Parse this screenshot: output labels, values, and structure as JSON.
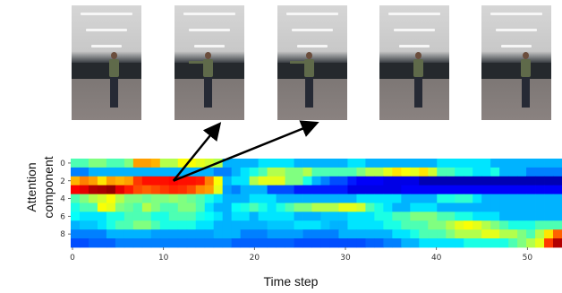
{
  "frames": [
    {
      "name": "frame-1"
    },
    {
      "name": "frame-2"
    },
    {
      "name": "frame-3"
    },
    {
      "name": "frame-4"
    },
    {
      "name": "frame-5"
    }
  ],
  "chart_data": {
    "type": "heatmap",
    "title": "",
    "xlabel": "Time step",
    "ylabel_line1": "Attention",
    "ylabel_line2": "component",
    "x_ticks": [
      0,
      10,
      20,
      30,
      40,
      50
    ],
    "y_ticks": [
      0,
      2,
      4,
      6,
      8
    ],
    "xlim": [
      0,
      54
    ],
    "ylim": [
      0,
      9
    ],
    "colormap": "jet",
    "colors": [
      "#00007f",
      "#0000ff",
      "#007fff",
      "#00ffff",
      "#7fff7f",
      "#ffff00",
      "#ff7f00",
      "#ff0000",
      "#7f0000"
    ],
    "arrows_from_cell": {
      "x": 11,
      "y": 2
    },
    "arrows_to_frames": [
      "frame-2",
      "frame-3"
    ],
    "rows": [
      [
        0.45,
        0.45,
        0.5,
        0.5,
        0.45,
        0.45,
        0.5,
        0.72,
        0.72,
        0.7,
        0.55,
        0.55,
        0.62,
        0.62,
        0.6,
        0.58,
        0.55,
        0.3,
        0.3,
        0.3,
        0.3,
        0.35,
        0.35,
        0.35,
        0.35,
        0.3,
        0.3,
        0.3,
        0.3,
        0.3,
        0.3,
        0.35,
        0.35,
        0.3,
        0.3,
        0.3,
        0.3,
        0.3,
        0.3,
        0.3,
        0.3,
        0.35,
        0.35,
        0.35,
        0.35,
        0.35,
        0.35,
        0.3,
        0.3,
        0.3,
        0.3,
        0.3,
        0.3,
        0.3,
        0.3
      ],
      [
        0.25,
        0.25,
        0.3,
        0.3,
        0.3,
        0.3,
        0.3,
        0.3,
        0.3,
        0.3,
        0.3,
        0.3,
        0.3,
        0.3,
        0.3,
        0.3,
        0.25,
        0.25,
        0.3,
        0.35,
        0.4,
        0.45,
        0.55,
        0.55,
        0.5,
        0.5,
        0.55,
        0.45,
        0.45,
        0.45,
        0.45,
        0.45,
        0.5,
        0.55,
        0.55,
        0.6,
        0.65,
        0.62,
        0.6,
        0.65,
        0.58,
        0.45,
        0.45,
        0.4,
        0.4,
        0.35,
        0.35,
        0.4,
        0.3,
        0.3,
        0.3,
        0.25,
        0.25,
        0.25,
        0.25
      ],
      [
        0.7,
        0.75,
        0.72,
        0.65,
        0.72,
        0.7,
        0.72,
        0.82,
        0.86,
        0.86,
        0.86,
        0.87,
        0.86,
        0.86,
        0.85,
        0.75,
        0.62,
        0.3,
        0.35,
        0.35,
        0.55,
        0.6,
        0.6,
        0.6,
        0.5,
        0.5,
        0.4,
        0.3,
        0.25,
        0.2,
        0.2,
        0.15,
        0.12,
        0.12,
        0.12,
        0.1,
        0.1,
        0.1,
        0.1,
        0.05,
        0.05,
        0.05,
        0.05,
        0.05,
        0.05,
        0.05,
        0.05,
        0.05,
        0.05,
        0.05,
        0.05,
        0.05,
        0.05,
        0.05,
        0.05
      ],
      [
        0.88,
        0.9,
        0.95,
        0.96,
        0.98,
        0.9,
        0.85,
        0.8,
        0.78,
        0.8,
        0.82,
        0.84,
        0.83,
        0.8,
        0.74,
        0.72,
        0.6,
        0.28,
        0.25,
        0.3,
        0.3,
        0.3,
        0.2,
        0.2,
        0.2,
        0.15,
        0.15,
        0.15,
        0.15,
        0.15,
        0.15,
        0.1,
        0.1,
        0.1,
        0.1,
        0.1,
        0.1,
        0.12,
        0.12,
        0.12,
        0.12,
        0.12,
        0.12,
        0.12,
        0.12,
        0.12,
        0.12,
        0.12,
        0.12,
        0.12,
        0.12,
        0.12,
        0.12,
        0.12,
        0.12
      ],
      [
        0.45,
        0.5,
        0.55,
        0.58,
        0.62,
        0.55,
        0.5,
        0.5,
        0.48,
        0.5,
        0.5,
        0.52,
        0.5,
        0.48,
        0.45,
        0.4,
        0.35,
        0.3,
        0.3,
        0.3,
        0.35,
        0.35,
        0.35,
        0.3,
        0.3,
        0.3,
        0.3,
        0.3,
        0.3,
        0.3,
        0.3,
        0.3,
        0.35,
        0.35,
        0.35,
        0.35,
        0.35,
        0.3,
        0.3,
        0.3,
        0.3,
        0.4,
        0.4,
        0.42,
        0.42,
        0.35,
        0.3,
        0.3,
        0.3,
        0.3,
        0.3,
        0.3,
        0.3,
        0.3,
        0.3
      ],
      [
        0.4,
        0.45,
        0.45,
        0.62,
        0.6,
        0.5,
        0.48,
        0.45,
        0.55,
        0.5,
        0.45,
        0.45,
        0.5,
        0.5,
        0.45,
        0.35,
        0.3,
        0.3,
        0.38,
        0.4,
        0.45,
        0.4,
        0.35,
        0.4,
        0.45,
        0.5,
        0.5,
        0.55,
        0.55,
        0.55,
        0.6,
        0.6,
        0.58,
        0.45,
        0.4,
        0.35,
        0.3,
        0.3,
        0.35,
        0.35,
        0.35,
        0.3,
        0.3,
        0.3,
        0.3,
        0.3,
        0.3,
        0.3,
        0.3,
        0.3,
        0.3,
        0.3,
        0.3,
        0.3,
        0.3
      ],
      [
        0.38,
        0.35,
        0.35,
        0.35,
        0.4,
        0.4,
        0.45,
        0.45,
        0.45,
        0.4,
        0.4,
        0.45,
        0.45,
        0.45,
        0.4,
        0.38,
        0.35,
        0.3,
        0.35,
        0.35,
        0.3,
        0.35,
        0.35,
        0.35,
        0.35,
        0.3,
        0.3,
        0.3,
        0.32,
        0.32,
        0.32,
        0.35,
        0.35,
        0.35,
        0.4,
        0.4,
        0.45,
        0.45,
        0.5,
        0.5,
        0.5,
        0.45,
        0.45,
        0.4,
        0.4,
        0.35,
        0.35,
        0.35,
        0.3,
        0.3,
        0.3,
        0.3,
        0.3,
        0.3,
        0.3
      ],
      [
        0.3,
        0.32,
        0.32,
        0.35,
        0.4,
        0.45,
        0.45,
        0.5,
        0.5,
        0.45,
        0.4,
        0.4,
        0.4,
        0.4,
        0.35,
        0.35,
        0.3,
        0.3,
        0.3,
        0.3,
        0.3,
        0.3,
        0.32,
        0.32,
        0.32,
        0.35,
        0.35,
        0.35,
        0.32,
        0.3,
        0.3,
        0.35,
        0.35,
        0.35,
        0.35,
        0.4,
        0.4,
        0.45,
        0.45,
        0.45,
        0.5,
        0.5,
        0.55,
        0.6,
        0.62,
        0.6,
        0.55,
        0.5,
        0.45,
        0.4,
        0.4,
        0.4,
        0.45,
        0.45,
        0.45
      ],
      [
        0.25,
        0.25,
        0.25,
        0.25,
        0.3,
        0.3,
        0.3,
        0.3,
        0.3,
        0.28,
        0.28,
        0.28,
        0.28,
        0.28,
        0.28,
        0.28,
        0.3,
        0.3,
        0.3,
        0.25,
        0.25,
        0.25,
        0.28,
        0.28,
        0.28,
        0.28,
        0.25,
        0.25,
        0.25,
        0.25,
        0.3,
        0.3,
        0.3,
        0.3,
        0.3,
        0.3,
        0.35,
        0.35,
        0.4,
        0.45,
        0.45,
        0.45,
        0.5,
        0.55,
        0.55,
        0.55,
        0.6,
        0.6,
        0.55,
        0.55,
        0.5,
        0.45,
        0.55,
        0.65,
        0.78
      ],
      [
        0.2,
        0.2,
        0.22,
        0.22,
        0.22,
        0.25,
        0.25,
        0.25,
        0.25,
        0.25,
        0.25,
        0.25,
        0.25,
        0.25,
        0.25,
        0.25,
        0.25,
        0.25,
        0.22,
        0.22,
        0.22,
        0.22,
        0.22,
        0.22,
        0.22,
        0.2,
        0.2,
        0.2,
        0.2,
        0.2,
        0.2,
        0.2,
        0.2,
        0.22,
        0.22,
        0.25,
        0.25,
        0.3,
        0.3,
        0.35,
        0.35,
        0.35,
        0.35,
        0.35,
        0.4,
        0.4,
        0.4,
        0.4,
        0.4,
        0.45,
        0.5,
        0.55,
        0.6,
        0.82,
        0.95
      ]
    ]
  }
}
